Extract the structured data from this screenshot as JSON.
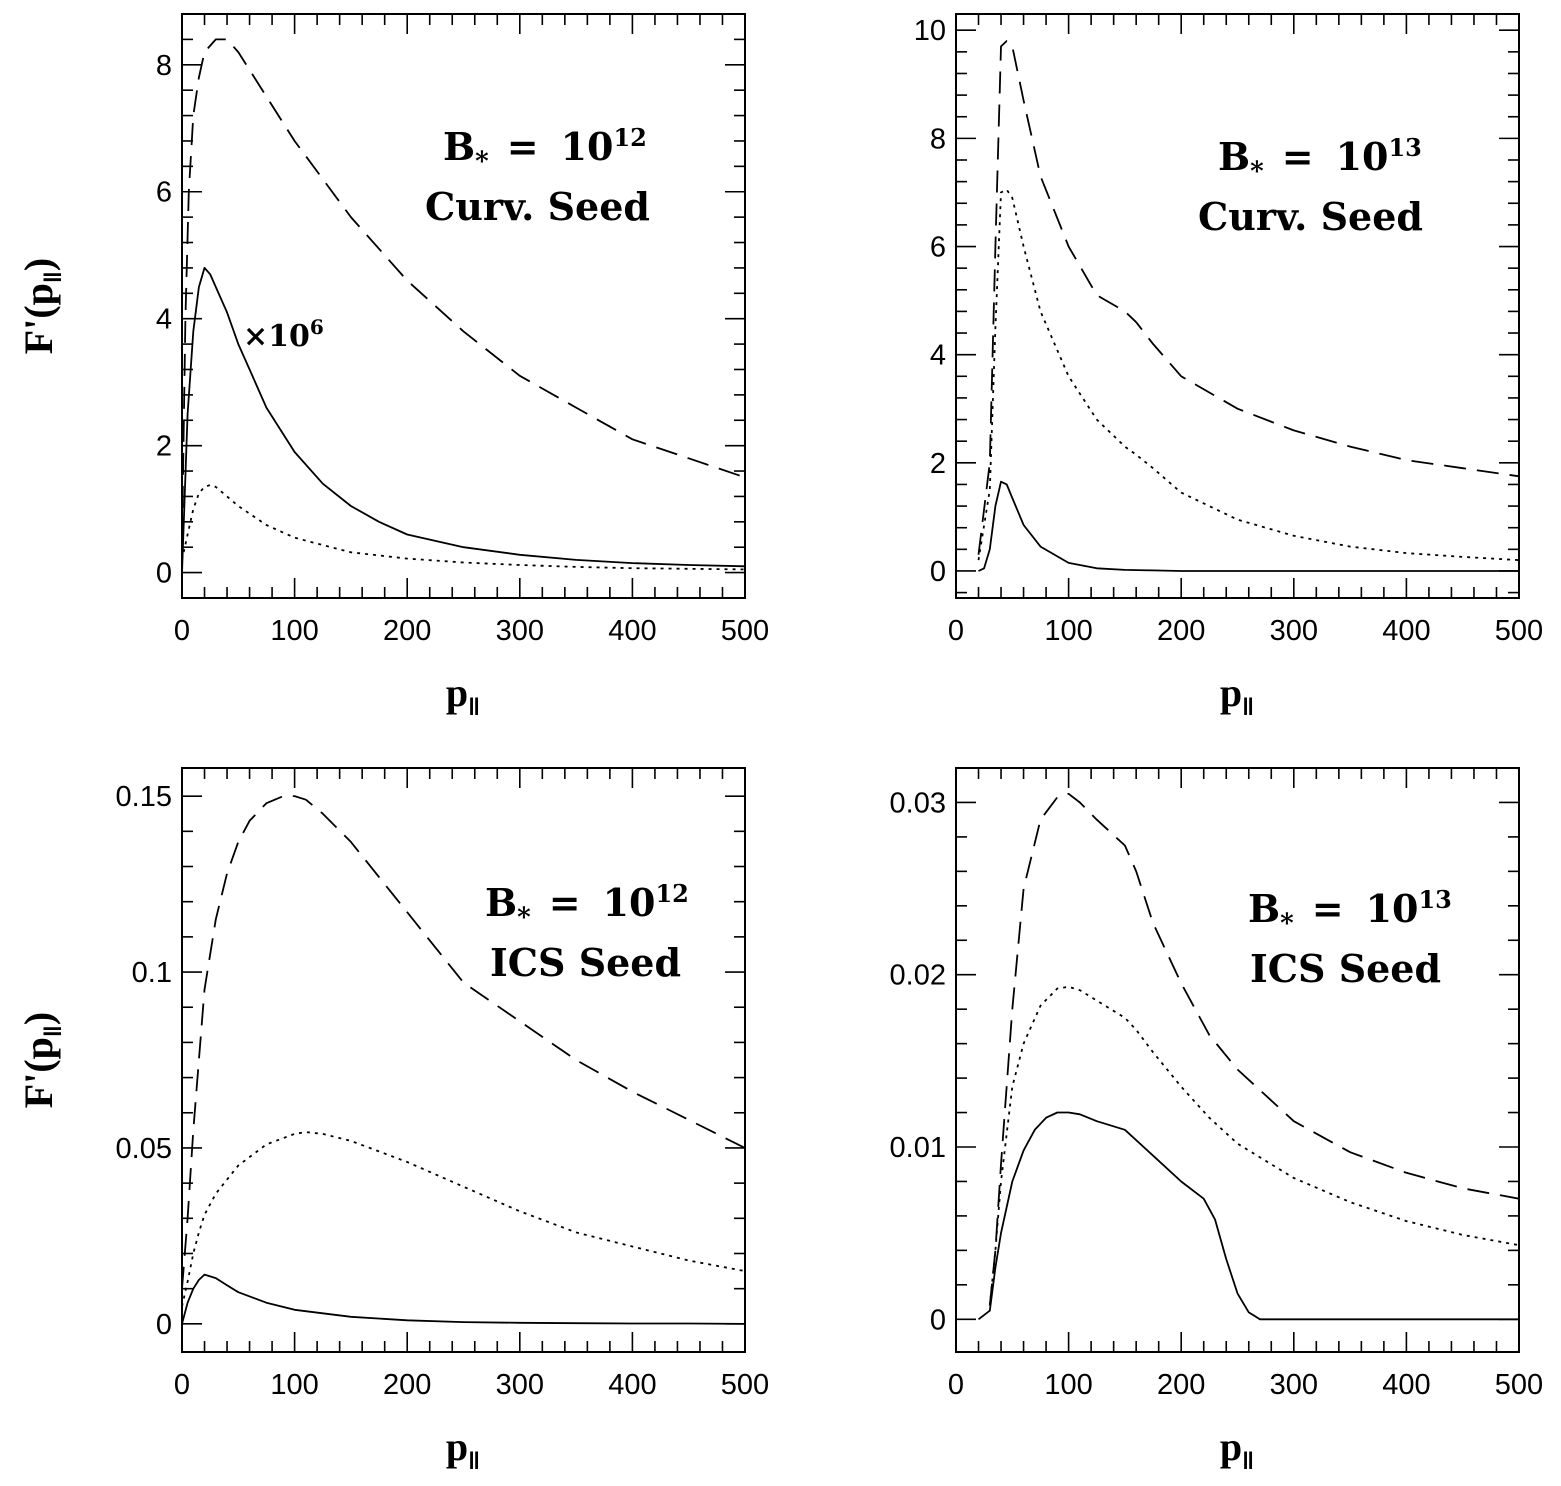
{
  "chart_data": [
    {
      "type": "line",
      "panel": "top-left",
      "xlabel": "p∥",
      "ylabel": "F'(p∥)",
      "xlim": [
        0,
        500
      ],
      "ylim": [
        -0.4,
        8.8
      ],
      "xticks": [
        0,
        100,
        200,
        300,
        400,
        500
      ],
      "xtick_labels": [
        "0",
        "100",
        "200",
        "300",
        "400",
        "500"
      ],
      "yticks": [
        0,
        2,
        4,
        6,
        8
      ],
      "ytick_labels": [
        "0",
        "2",
        "4",
        "6",
        "8"
      ],
      "annotation_lines": [
        "B* = 10^12",
        "Curv. Seed"
      ],
      "annotation_b": "B",
      "annotation_sub": "*",
      "annotation_eq": "=",
      "annotation_base": "10",
      "annotation_exp": "12",
      "annotation_seed": "Curv. Seed",
      "series_label": "×10⁶",
      "series": [
        {
          "name": "dashed",
          "style": "dashed",
          "x": [
            0,
            3,
            6,
            10,
            15,
            20,
            30,
            40,
            50,
            75,
            100,
            150,
            200,
            250,
            300,
            350,
            400,
            450,
            500
          ],
          "y": [
            0.5,
            4.0,
            6.0,
            7.2,
            7.8,
            8.2,
            8.4,
            8.4,
            8.2,
            7.5,
            6.8,
            5.6,
            4.6,
            3.8,
            3.1,
            2.6,
            2.1,
            1.8,
            1.5
          ]
        },
        {
          "name": "solid (×10⁶)",
          "style": "solid",
          "x": [
            0,
            5,
            10,
            15,
            20,
            25,
            30,
            40,
            50,
            60,
            75,
            100,
            125,
            150,
            175,
            200,
            250,
            300,
            350,
            400,
            450,
            500
          ],
          "y": [
            0,
            2.5,
            3.8,
            4.5,
            4.8,
            4.7,
            4.5,
            4.1,
            3.6,
            3.2,
            2.6,
            1.9,
            1.4,
            1.05,
            0.8,
            0.6,
            0.4,
            0.28,
            0.2,
            0.15,
            0.12,
            0.1
          ]
        },
        {
          "name": "dotted",
          "style": "dotted",
          "x": [
            0,
            5,
            10,
            15,
            20,
            25,
            30,
            40,
            50,
            75,
            100,
            150,
            200,
            250,
            300,
            350,
            400,
            450,
            500
          ],
          "y": [
            0.2,
            0.6,
            1.0,
            1.25,
            1.35,
            1.38,
            1.35,
            1.2,
            1.05,
            0.75,
            0.55,
            0.32,
            0.22,
            0.16,
            0.12,
            0.09,
            0.07,
            0.06,
            0.05
          ]
        }
      ]
    },
    {
      "type": "line",
      "panel": "top-right",
      "xlabel": "p∥",
      "ylabel": "",
      "xlim": [
        0,
        500
      ],
      "ylim": [
        -0.5,
        10.3
      ],
      "xticks": [
        0,
        100,
        200,
        300,
        400,
        500
      ],
      "xtick_labels": [
        "0",
        "100",
        "200",
        "300",
        "400",
        "500"
      ],
      "yticks": [
        0,
        2,
        4,
        6,
        8,
        10
      ],
      "ytick_labels": [
        "0",
        "2",
        "4",
        "6",
        "8",
        "10"
      ],
      "annotation_lines": [
        "B* = 10^13",
        "Curv. Seed"
      ],
      "annotation_b": "B",
      "annotation_sub": "*",
      "annotation_eq": "=",
      "annotation_base": "10",
      "annotation_exp": "13",
      "annotation_seed": "Curv. Seed",
      "series": [
        {
          "name": "dashed",
          "style": "dashed",
          "x": [
            20,
            30,
            35,
            40,
            45,
            50,
            60,
            75,
            100,
            125,
            150,
            160,
            175,
            200,
            250,
            300,
            350,
            400,
            450,
            500
          ],
          "y": [
            0.3,
            2.0,
            6.0,
            9.7,
            9.8,
            9.7,
            8.7,
            7.3,
            6.0,
            5.1,
            4.8,
            4.6,
            4.2,
            3.6,
            3.0,
            2.6,
            2.3,
            2.05,
            1.9,
            1.75
          ]
        },
        {
          "name": "dotted",
          "style": "dotted",
          "x": [
            20,
            30,
            35,
            40,
            45,
            50,
            60,
            75,
            100,
            125,
            150,
            160,
            175,
            200,
            250,
            300,
            350,
            400,
            450,
            500
          ],
          "y": [
            0.2,
            1.5,
            4.5,
            7.0,
            7.05,
            6.9,
            6.0,
            4.8,
            3.6,
            2.8,
            2.3,
            2.15,
            1.9,
            1.45,
            0.95,
            0.65,
            0.45,
            0.33,
            0.26,
            0.2
          ]
        },
        {
          "name": "solid",
          "style": "solid",
          "x": [
            20,
            25,
            30,
            35,
            40,
            45,
            50,
            60,
            75,
            100,
            125,
            150,
            175,
            200,
            250,
            300,
            350,
            400,
            450,
            500
          ],
          "y": [
            0,
            0.05,
            0.4,
            1.2,
            1.65,
            1.6,
            1.35,
            0.85,
            0.45,
            0.15,
            0.05,
            0.02,
            0.01,
            0,
            0,
            0,
            0,
            0,
            0,
            0
          ]
        }
      ]
    },
    {
      "type": "line",
      "panel": "bottom-left",
      "xlabel": "p∥",
      "ylabel": "F'(p∥)",
      "xlim": [
        0,
        500
      ],
      "ylim": [
        -0.008,
        0.158
      ],
      "xticks": [
        0,
        100,
        200,
        300,
        400,
        500
      ],
      "xtick_labels": [
        "0",
        "100",
        "200",
        "300",
        "400",
        "500"
      ],
      "yticks": [
        0,
        0.05,
        0.1,
        0.15
      ],
      "ytick_labels": [
        "0",
        "0.05",
        "0.1",
        "0.15"
      ],
      "annotation_lines": [
        "B* = 10^12",
        "ICS Seed"
      ],
      "annotation_b": "B",
      "annotation_sub": "*",
      "annotation_eq": "=",
      "annotation_base": "10",
      "annotation_exp": "12",
      "annotation_seed": "ICS Seed",
      "series": [
        {
          "name": "dashed",
          "style": "dashed",
          "x": [
            0,
            5,
            10,
            15,
            20,
            30,
            40,
            50,
            60,
            75,
            90,
            100,
            110,
            125,
            150,
            175,
            200,
            250,
            300,
            350,
            400,
            450,
            500
          ],
          "y": [
            0.01,
            0.03,
            0.055,
            0.075,
            0.095,
            0.115,
            0.128,
            0.137,
            0.143,
            0.148,
            0.15,
            0.15,
            0.149,
            0.145,
            0.137,
            0.127,
            0.117,
            0.097,
            0.086,
            0.075,
            0.066,
            0.058,
            0.05
          ]
        },
        {
          "name": "dotted",
          "style": "dotted",
          "x": [
            0,
            5,
            10,
            15,
            20,
            30,
            40,
            50,
            75,
            100,
            110,
            125,
            150,
            200,
            250,
            300,
            350,
            400,
            450,
            500
          ],
          "y": [
            0.005,
            0.012,
            0.02,
            0.026,
            0.031,
            0.037,
            0.041,
            0.045,
            0.051,
            0.054,
            0.0545,
            0.054,
            0.052,
            0.046,
            0.039,
            0.032,
            0.026,
            0.022,
            0.018,
            0.015
          ]
        },
        {
          "name": "solid",
          "style": "solid",
          "x": [
            0,
            5,
            10,
            15,
            20,
            30,
            40,
            50,
            75,
            100,
            150,
            200,
            250,
            300,
            350,
            400,
            450,
            500
          ],
          "y": [
            0,
            0.006,
            0.01,
            0.0125,
            0.014,
            0.013,
            0.011,
            0.009,
            0.006,
            0.004,
            0.002,
            0.001,
            0.0005,
            0.0003,
            0.0002,
            0.0001,
            0.0001,
            0
          ]
        }
      ]
    },
    {
      "type": "line",
      "panel": "bottom-right",
      "xlabel": "p∥",
      "ylabel": "",
      "xlim": [
        0,
        500
      ],
      "ylim": [
        -0.0019,
        0.032
      ],
      "xticks": [
        0,
        100,
        200,
        300,
        400,
        500
      ],
      "xtick_labels": [
        "0",
        "100",
        "200",
        "300",
        "400",
        "500"
      ],
      "yticks": [
        0,
        0.01,
        0.02,
        0.03
      ],
      "ytick_labels": [
        "0",
        "0.01",
        "0.02",
        "0.03"
      ],
      "annotation_lines": [
        "B* = 10^13",
        "ICS Seed"
      ],
      "annotation_b": "B",
      "annotation_sub": "*",
      "annotation_eq": "=",
      "annotation_base": "10",
      "annotation_exp": "13",
      "annotation_seed": "ICS Seed",
      "series": [
        {
          "name": "dashed",
          "style": "dashed",
          "x": [
            30,
            35,
            40,
            50,
            60,
            75,
            90,
            100,
            110,
            125,
            150,
            160,
            175,
            200,
            225,
            250,
            300,
            350,
            400,
            450,
            500
          ],
          "y": [
            0.0008,
            0.004,
            0.009,
            0.018,
            0.025,
            0.029,
            0.0303,
            0.0305,
            0.03,
            0.029,
            0.0275,
            0.026,
            0.023,
            0.0195,
            0.0165,
            0.0145,
            0.0115,
            0.0097,
            0.0085,
            0.0076,
            0.007
          ]
        },
        {
          "name": "dotted",
          "style": "dotted",
          "x": [
            30,
            35,
            40,
            50,
            60,
            75,
            90,
            100,
            110,
            125,
            150,
            160,
            175,
            200,
            225,
            250,
            300,
            350,
            400,
            450,
            500
          ],
          "y": [
            0.0008,
            0.004,
            0.008,
            0.0135,
            0.016,
            0.0182,
            0.0192,
            0.0193,
            0.0191,
            0.0185,
            0.0175,
            0.0168,
            0.0155,
            0.0135,
            0.0117,
            0.0102,
            0.0082,
            0.0068,
            0.0057,
            0.0049,
            0.0043
          ]
        },
        {
          "name": "solid",
          "style": "solid",
          "x": [
            20,
            30,
            35,
            40,
            50,
            60,
            70,
            80,
            90,
            100,
            110,
            125,
            150,
            175,
            200,
            220,
            230,
            240,
            250,
            260,
            270,
            280,
            300,
            350,
            400,
            450,
            500
          ],
          "y": [
            0,
            0.0005,
            0.003,
            0.005,
            0.008,
            0.0098,
            0.011,
            0.0117,
            0.012,
            0.012,
            0.0119,
            0.0115,
            0.011,
            0.0095,
            0.008,
            0.007,
            0.0058,
            0.0035,
            0.0015,
            0.0004,
            0,
            0,
            0,
            0,
            0,
            0,
            0
          ]
        }
      ]
    }
  ]
}
